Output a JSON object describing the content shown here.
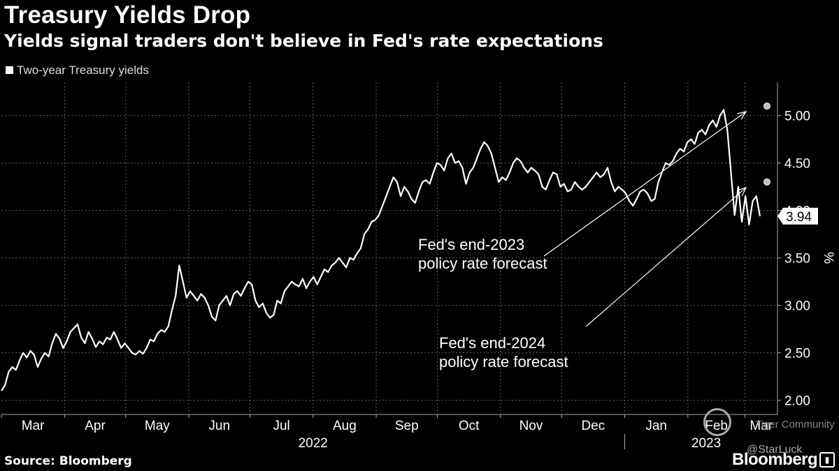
{
  "title": "Treasury Yields Drop",
  "subtitle": "Yields signal traders don't believe in Fed's rate expectations",
  "legend_label": "Two-year Treasury yields",
  "source": "Source: Bloomberg",
  "brand": "Bloomberg",
  "watermark": {
    "community": "Tiger Community",
    "handle": "@StarLuck"
  },
  "colors": {
    "background": "#000000",
    "line": "#ffffff",
    "grid": "#666666",
    "marker": "#bbbbbb"
  },
  "chart_data": {
    "type": "line",
    "series": [
      {
        "name": "Two-year Treasury yields"
      }
    ],
    "x_start": "2022-03-01",
    "x_end": "2023-03-17",
    "values": [
      2.1,
      2.16,
      2.3,
      2.35,
      2.32,
      2.42,
      2.5,
      2.45,
      2.52,
      2.48,
      2.35,
      2.44,
      2.5,
      2.46,
      2.6,
      2.7,
      2.65,
      2.55,
      2.62,
      2.72,
      2.76,
      2.8,
      2.66,
      2.6,
      2.72,
      2.65,
      2.56,
      2.62,
      2.59,
      2.66,
      2.64,
      2.72,
      2.64,
      2.55,
      2.6,
      2.55,
      2.5,
      2.48,
      2.52,
      2.49,
      2.55,
      2.64,
      2.62,
      2.7,
      2.74,
      2.72,
      2.78,
      2.95,
      3.1,
      3.42,
      3.25,
      3.08,
      3.15,
      3.1,
      3.05,
      3.12,
      3.08,
      3.0,
      2.88,
      2.84,
      3.0,
      3.05,
      3.1,
      3.0,
      3.12,
      3.15,
      3.1,
      3.18,
      3.25,
      3.22,
      3.05,
      2.98,
      3.02,
      2.92,
      2.87,
      2.9,
      3.05,
      3.02,
      3.15,
      3.2,
      3.25,
      3.22,
      3.2,
      3.28,
      3.18,
      3.25,
      3.3,
      3.22,
      3.3,
      3.38,
      3.35,
      3.42,
      3.45,
      3.5,
      3.45,
      3.4,
      3.5,
      3.48,
      3.55,
      3.6,
      3.75,
      3.8,
      3.88,
      3.9,
      3.95,
      4.05,
      4.15,
      4.25,
      4.35,
      4.3,
      4.15,
      4.25,
      4.2,
      4.12,
      4.08,
      4.2,
      4.3,
      4.32,
      4.28,
      4.4,
      4.5,
      4.48,
      4.42,
      4.55,
      4.6,
      4.5,
      4.52,
      4.45,
      4.28,
      4.4,
      4.45,
      4.55,
      4.65,
      4.72,
      4.68,
      4.6,
      4.45,
      4.3,
      4.35,
      4.32,
      4.4,
      4.5,
      4.55,
      4.52,
      4.45,
      4.4,
      4.45,
      4.42,
      4.38,
      4.25,
      4.22,
      4.32,
      4.4,
      4.38,
      4.25,
      4.28,
      4.2,
      4.22,
      4.3,
      4.25,
      4.22,
      4.25,
      4.3,
      4.35,
      4.4,
      4.35,
      4.38,
      4.45,
      4.3,
      4.2,
      4.25,
      4.22,
      4.18,
      4.1,
      4.05,
      4.12,
      4.2,
      4.22,
      4.18,
      4.1,
      4.12,
      4.3,
      4.4,
      4.5,
      4.48,
      4.52,
      4.6,
      4.65,
      4.62,
      4.72,
      4.75,
      4.7,
      4.82,
      4.85,
      4.8,
      4.9,
      4.95,
      4.88,
      5.0,
      5.06,
      4.85,
      4.4,
      3.95,
      4.25,
      3.88,
      4.15,
      3.85,
      4.1,
      4.15,
      3.94
    ],
    "last_value": 3.94,
    "last_value_label": "3.94",
    "ylim": [
      1.85,
      5.35
    ],
    "y_ticks": [
      2.0,
      2.5,
      3.0,
      3.5,
      4.0,
      4.5,
      5.0
    ],
    "y_tick_labels": [
      "2.00",
      "2.50",
      "3.00",
      "3.50",
      "4.00",
      "4.50",
      "5.00"
    ],
    "ylabel": "%",
    "month_ticks": [
      "2022-03-01",
      "2022-04-01",
      "2022-05-01",
      "2022-06-01",
      "2022-07-01",
      "2022-08-01",
      "2022-09-01",
      "2022-10-01",
      "2022-11-01",
      "2022-12-01",
      "2023-01-01",
      "2023-02-01",
      "2023-03-01"
    ],
    "month_labels": [
      "Mar",
      "Apr",
      "May",
      "Jun",
      "Jul",
      "Aug",
      "Sep",
      "Oct",
      "Nov",
      "Dec",
      "Jan",
      "Feb",
      "Mar"
    ],
    "year_labels": [
      {
        "label": "2022",
        "date": "2022-08-01"
      },
      {
        "label": "2023",
        "date": "2023-02-10"
      }
    ],
    "year_divider": "2023-01-01",
    "grid": true,
    "annotations": [
      {
        "name": "end-2023",
        "lines": [
          "Fed's end-2023",
          "policy rate forecast"
        ],
        "target_value": 5.1
      },
      {
        "name": "end-2024",
        "lines": [
          "Fed's end-2024",
          "policy rate forecast"
        ],
        "target_value": 4.3
      }
    ]
  }
}
